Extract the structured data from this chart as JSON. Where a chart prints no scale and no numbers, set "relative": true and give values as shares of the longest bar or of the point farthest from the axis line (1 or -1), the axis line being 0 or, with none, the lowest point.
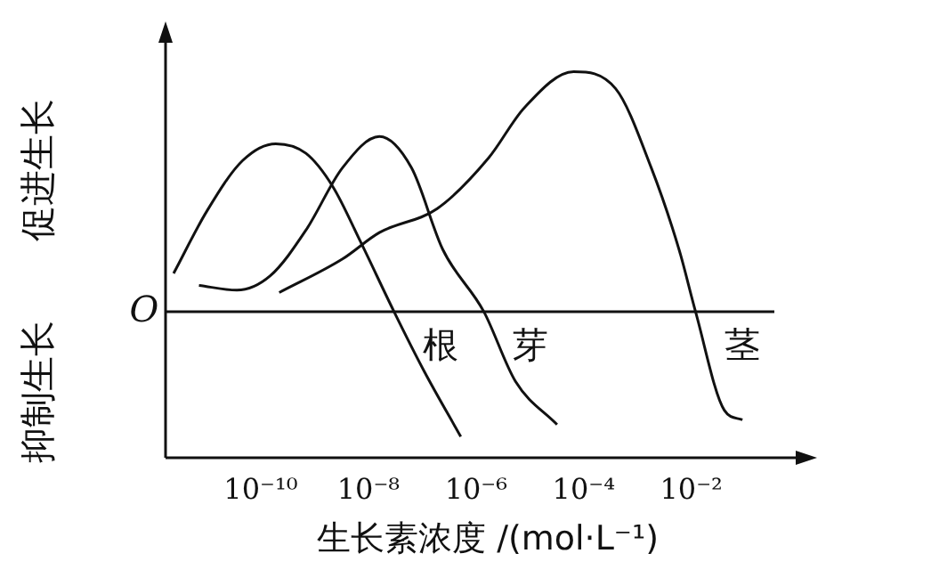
{
  "chart_data": {
    "type": "line",
    "relative": true,
    "xlabel": "生长素浓度 /(mol·L⁻¹)",
    "log": "x",
    "xlim": [
      1.7e-12,
      1.6
    ],
    "xticks": [
      {
        "value": 1e-10,
        "label": "10⁻¹⁰"
      },
      {
        "value": 1e-08,
        "label": "10⁻⁸"
      },
      {
        "value": 1e-06,
        "label": "10⁻⁶"
      },
      {
        "value": 0.0001,
        "label": "10⁻⁴"
      },
      {
        "value": 0.01,
        "label": "10⁻²"
      }
    ],
    "grid": false,
    "legend": false,
    "marker": "none",
    "line_style": "solid",
    "annotations": [
      "促进生长",
      "抑制生长",
      "O"
    ],
    "series": [
      {
        "name": "根",
        "color": "#111111",
        "x": [
          2.4e-12,
          1e-11,
          4.6e-11,
          1.9e-10,
          6.9e-10,
          2.2e-09,
          7.2e-09,
          3e-08,
          1.1e-07,
          5.2e-07
        ],
        "values": [
          0.16,
          0.42,
          0.63,
          0.7,
          0.66,
          0.52,
          0.29,
          0,
          -0.25,
          -0.52
        ]
      },
      {
        "name": "芽",
        "color": "#111111",
        "x": [
          7.1e-12,
          3.6e-11,
          1.5e-10,
          6.9e-10,
          3.3e-09,
          1.6e-08,
          6.3e-08,
          2.4e-07,
          1.4e-06,
          5.4e-06,
          3.2e-05
        ],
        "values": [
          0.11,
          0.09,
          0.15,
          0.34,
          0.6,
          0.73,
          0.6,
          0.26,
          0,
          -0.29,
          -0.47
        ]
      },
      {
        "name": "茎",
        "color": "#111111",
        "x": [
          2.2e-10,
          3.3e-09,
          1.6e-08,
          1.9e-07,
          1.7e-06,
          7.9e-06,
          6.5e-05,
          0.00039,
          0.0018,
          0.0059,
          0.012,
          0.041,
          0.089
        ],
        "values": [
          0.08,
          0.22,
          0.33,
          0.43,
          0.64,
          0.85,
          1,
          0.93,
          0.6,
          0.26,
          0,
          -0.41,
          -0.45
        ]
      }
    ]
  }
}
